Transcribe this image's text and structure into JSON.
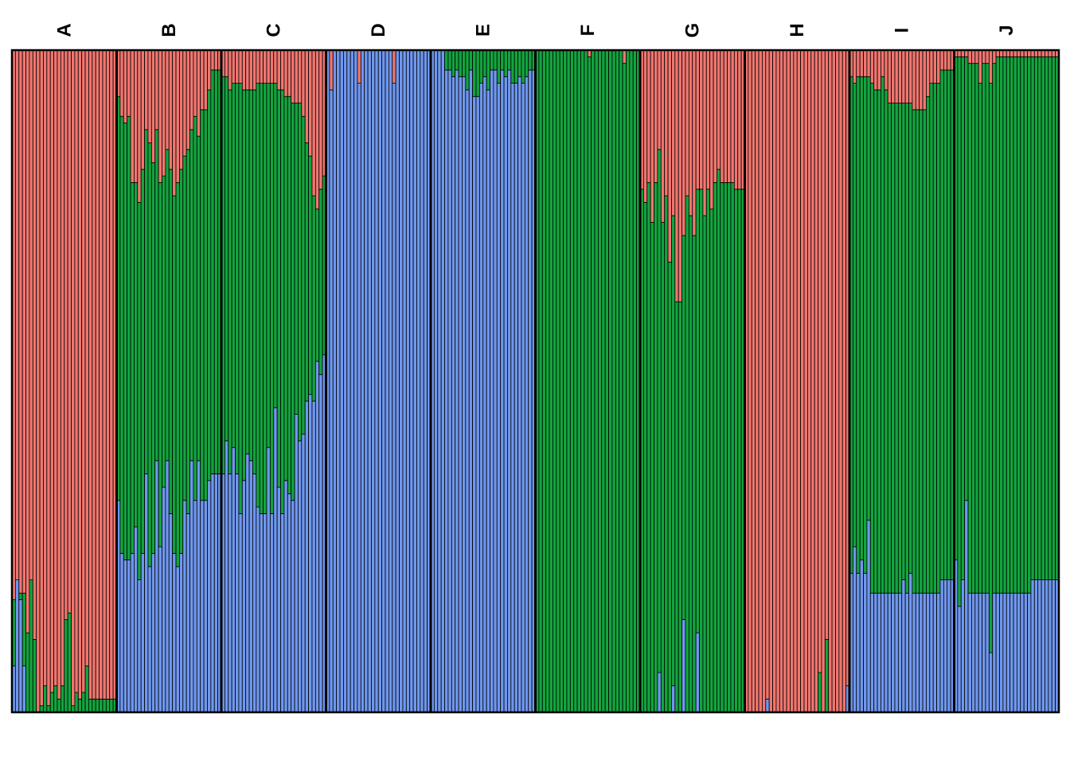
{
  "chart_data": {
    "type": "bar",
    "stacked": true,
    "orientation": "vertical",
    "ylim": [
      0,
      1
    ],
    "grid": false,
    "legend": "none",
    "colors": {
      "blue": "#6f97ee",
      "green": "#13a43f",
      "red": "#f0766f"
    },
    "series_order_bottom_to_top": [
      "blue",
      "green",
      "red"
    ],
    "groups": [
      {
        "label": "A",
        "blue": [
          0.07,
          0.2,
          0.17,
          0.07,
          0,
          0,
          0,
          0,
          0,
          0,
          0,
          0,
          0,
          0,
          0,
          0,
          0,
          0,
          0,
          0,
          0,
          0,
          0,
          0,
          0,
          0,
          0,
          0,
          0,
          0
        ],
        "green": [
          0.1,
          0,
          0.01,
          0.11,
          0.12,
          0.2,
          0.11,
          0,
          0.01,
          0.04,
          0.01,
          0.03,
          0.04,
          0.02,
          0.04,
          0.14,
          0.15,
          0.01,
          0.03,
          0.02,
          0.03,
          0.07,
          0.02,
          0.02,
          0.02,
          0.02,
          0.02,
          0.02,
          0.02,
          0.02
        ],
        "red": [
          0.83,
          0.8,
          0.82,
          0.82,
          0.88,
          0.8,
          0.89,
          1,
          0.99,
          0.96,
          0.99,
          0.97,
          0.96,
          0.98,
          0.96,
          0.86,
          0.85,
          0.99,
          0.97,
          0.98,
          0.97,
          0.93,
          0.98,
          0.98,
          0.98,
          0.98,
          0.98,
          0.98,
          0.98,
          0.98
        ]
      },
      {
        "label": "B",
        "blue": [
          0.32,
          0.24,
          0.23,
          0.23,
          0.24,
          0.28,
          0.2,
          0.24,
          0.36,
          0.22,
          0.24,
          0.38,
          0.25,
          0.34,
          0.38,
          0.3,
          0.24,
          0.22,
          0.24,
          0.32,
          0.3,
          0.38,
          0.32,
          0.38,
          0.32,
          0.32,
          0.35,
          0.36,
          0.36,
          0.36
        ],
        "green": [
          0.61,
          0.66,
          0.66,
          0.67,
          0.56,
          0.52,
          0.57,
          0.58,
          0.52,
          0.64,
          0.59,
          0.5,
          0.55,
          0.47,
          0.47,
          0.52,
          0.54,
          0.58,
          0.58,
          0.52,
          0.55,
          0.5,
          0.58,
          0.49,
          0.59,
          0.59,
          0.59,
          0.61,
          0.61,
          0.61
        ],
        "red": [
          0.07,
          0.1,
          0.11,
          0.1,
          0.2,
          0.2,
          0.23,
          0.18,
          0.12,
          0.14,
          0.17,
          0.12,
          0.2,
          0.19,
          0.15,
          0.18,
          0.22,
          0.2,
          0.18,
          0.16,
          0.15,
          0.12,
          0.1,
          0.13,
          0.09,
          0.09,
          0.06,
          0.03,
          0.03,
          0.03
        ]
      },
      {
        "label": "C",
        "blue": [
          0.36,
          0.41,
          0.36,
          0.4,
          0.36,
          0.3,
          0.35,
          0.39,
          0.38,
          0.36,
          0.31,
          0.3,
          0.3,
          0.4,
          0.3,
          0.46,
          0.34,
          0.3,
          0.35,
          0.33,
          0.32,
          0.45,
          0.41,
          0.42,
          0.47,
          0.48,
          0.47,
          0.53,
          0.51,
          0.54
        ],
        "green": [
          0.6,
          0.55,
          0.58,
          0.55,
          0.59,
          0.65,
          0.59,
          0.55,
          0.56,
          0.58,
          0.64,
          0.65,
          0.65,
          0.55,
          0.65,
          0.49,
          0.6,
          0.64,
          0.58,
          0.6,
          0.6,
          0.47,
          0.51,
          0.48,
          0.39,
          0.36,
          0.31,
          0.23,
          0.28,
          0.27
        ],
        "red": [
          0.04,
          0.04,
          0.06,
          0.05,
          0.05,
          0.05,
          0.06,
          0.06,
          0.06,
          0.06,
          0.05,
          0.05,
          0.05,
          0.05,
          0.05,
          0.05,
          0.06,
          0.06,
          0.07,
          0.07,
          0.08,
          0.08,
          0.08,
          0.1,
          0.14,
          0.16,
          0.22,
          0.24,
          0.21,
          0.19
        ]
      },
      {
        "label": "D",
        "blue": [
          1,
          0.94,
          1,
          1,
          1,
          1,
          1,
          1,
          1,
          0.95,
          1,
          1,
          1,
          1,
          1,
          1,
          1,
          1,
          1,
          0.95,
          1,
          1,
          1,
          1,
          1,
          1,
          1,
          1,
          1,
          1
        ],
        "green": [
          0,
          0,
          0,
          0,
          0,
          0,
          0,
          0,
          0,
          0,
          0,
          0,
          0,
          0,
          0,
          0,
          0,
          0,
          0,
          0,
          0,
          0,
          0,
          0,
          0,
          0,
          0,
          0,
          0,
          0
        ],
        "red": [
          0,
          0.06,
          0,
          0,
          0,
          0,
          0,
          0,
          0,
          0.05,
          0,
          0,
          0,
          0,
          0,
          0,
          0,
          0,
          0,
          0.05,
          0,
          0,
          0,
          0,
          0,
          0,
          0,
          0,
          0,
          0
        ]
      },
      {
        "label": "E",
        "blue": [
          1,
          1,
          1,
          1,
          0.97,
          0.97,
          0.96,
          0.97,
          0.96,
          0.96,
          0.94,
          0.97,
          0.93,
          0.93,
          0.95,
          0.96,
          0.94,
          0.97,
          0.97,
          0.95,
          0.97,
          0.96,
          0.97,
          0.95,
          0.95,
          0.96,
          0.95,
          0.96,
          0.97,
          0.97
        ],
        "green": [
          0,
          0,
          0,
          0,
          0.03,
          0.03,
          0.04,
          0.03,
          0.04,
          0.04,
          0.06,
          0.03,
          0.07,
          0.07,
          0.05,
          0.04,
          0.06,
          0.03,
          0.03,
          0.05,
          0.03,
          0.04,
          0.03,
          0.05,
          0.05,
          0.04,
          0.05,
          0.04,
          0.03,
          0.03
        ],
        "red": [
          0,
          0,
          0,
          0,
          0,
          0,
          0,
          0,
          0,
          0,
          0,
          0,
          0,
          0,
          0,
          0,
          0,
          0,
          0,
          0,
          0,
          0,
          0,
          0,
          0,
          0,
          0,
          0,
          0,
          0
        ]
      },
      {
        "label": "F",
        "blue": [
          0,
          0,
          0,
          0,
          0,
          0,
          0,
          0,
          0,
          0,
          0,
          0,
          0,
          0,
          0,
          0,
          0,
          0,
          0,
          0,
          0,
          0,
          0,
          0,
          0,
          0,
          0,
          0,
          0,
          0
        ],
        "green": [
          1,
          1,
          1,
          1,
          1,
          1,
          1,
          1,
          1,
          1,
          1,
          1,
          1,
          1,
          1,
          0.99,
          1,
          1,
          1,
          1,
          1,
          1,
          1,
          1,
          1,
          0.98,
          1,
          1,
          1,
          1
        ],
        "red": [
          0,
          0,
          0,
          0,
          0,
          0,
          0,
          0,
          0,
          0,
          0,
          0,
          0,
          0,
          0,
          0.01,
          0,
          0,
          0,
          0,
          0,
          0,
          0,
          0,
          0,
          0.02,
          0,
          0,
          0,
          0
        ]
      },
      {
        "label": "G",
        "blue": [
          0,
          0,
          0,
          0,
          0,
          0.06,
          0,
          0,
          0,
          0.04,
          0,
          0,
          0.14,
          0,
          0,
          0,
          0.12,
          0,
          0,
          0,
          0,
          0,
          0,
          0,
          0,
          0,
          0,
          0,
          0,
          0
        ],
        "green": [
          0.79,
          0.77,
          0.8,
          0.74,
          0.8,
          0.79,
          0.74,
          0.78,
          0.68,
          0.71,
          0.62,
          0.62,
          0.58,
          0.78,
          0.75,
          0.72,
          0.67,
          0.79,
          0.75,
          0.79,
          0.76,
          0.8,
          0.82,
          0.8,
          0.8,
          0.8,
          0.8,
          0.79,
          0.79,
          0.79
        ],
        "red": [
          0.21,
          0.23,
          0.2,
          0.26,
          0.2,
          0.15,
          0.26,
          0.22,
          0.32,
          0.25,
          0.38,
          0.38,
          0.28,
          0.22,
          0.25,
          0.28,
          0.21,
          0.21,
          0.25,
          0.21,
          0.24,
          0.2,
          0.18,
          0.2,
          0.2,
          0.2,
          0.2,
          0.21,
          0.21,
          0.21
        ]
      },
      {
        "label": "H",
        "blue": [
          0,
          0,
          0,
          0,
          0,
          0,
          0.02,
          0,
          0,
          0,
          0,
          0,
          0,
          0,
          0,
          0,
          0,
          0,
          0,
          0,
          0,
          0,
          0,
          0,
          0,
          0,
          0,
          0,
          0,
          0.04
        ],
        "green": [
          0,
          0,
          0,
          0,
          0,
          0,
          0,
          0,
          0,
          0,
          0,
          0,
          0,
          0,
          0,
          0,
          0,
          0,
          0,
          0,
          0,
          0.06,
          0,
          0.11,
          0,
          0,
          0,
          0,
          0,
          0
        ],
        "red": [
          1,
          1,
          1,
          1,
          1,
          1,
          0.98,
          1,
          1,
          1,
          1,
          1,
          1,
          1,
          1,
          1,
          1,
          1,
          1,
          1,
          1,
          0.94,
          1,
          0.89,
          1,
          1,
          1,
          1,
          1,
          0.96
        ]
      },
      {
        "label": "I",
        "blue": [
          0.21,
          0.25,
          0.21,
          0.23,
          0.21,
          0.29,
          0.18,
          0.18,
          0.18,
          0.18,
          0.18,
          0.18,
          0.18,
          0.18,
          0.18,
          0.2,
          0.18,
          0.21,
          0.18,
          0.18,
          0.18,
          0.18,
          0.18,
          0.18,
          0.18,
          0.18,
          0.2,
          0.2,
          0.2,
          0.2
        ],
        "green": [
          0.75,
          0.7,
          0.75,
          0.73,
          0.75,
          0.67,
          0.77,
          0.76,
          0.76,
          0.78,
          0.76,
          0.74,
          0.74,
          0.74,
          0.74,
          0.72,
          0.74,
          0.71,
          0.73,
          0.73,
          0.73,
          0.73,
          0.75,
          0.77,
          0.77,
          0.77,
          0.77,
          0.77,
          0.77,
          0.77
        ],
        "red": [
          0.04,
          0.05,
          0.04,
          0.04,
          0.04,
          0.04,
          0.05,
          0.06,
          0.06,
          0.04,
          0.06,
          0.08,
          0.08,
          0.08,
          0.08,
          0.08,
          0.08,
          0.08,
          0.09,
          0.09,
          0.09,
          0.09,
          0.07,
          0.05,
          0.05,
          0.05,
          0.03,
          0.03,
          0.03,
          0.03
        ]
      },
      {
        "label": "J",
        "blue": [
          0.23,
          0.16,
          0.2,
          0.32,
          0.18,
          0.18,
          0.18,
          0.18,
          0.18,
          0.18,
          0.09,
          0.18,
          0.18,
          0.18,
          0.18,
          0.18,
          0.18,
          0.18,
          0.18,
          0.18,
          0.18,
          0.18,
          0.2,
          0.2,
          0.2,
          0.2,
          0.2,
          0.2,
          0.2,
          0.2
        ],
        "green": [
          0.76,
          0.83,
          0.79,
          0.67,
          0.8,
          0.8,
          0.8,
          0.77,
          0.8,
          0.8,
          0.86,
          0.8,
          0.81,
          0.81,
          0.81,
          0.81,
          0.81,
          0.81,
          0.81,
          0.81,
          0.81,
          0.81,
          0.79,
          0.79,
          0.79,
          0.79,
          0.79,
          0.79,
          0.79,
          0.79
        ],
        "red": [
          0.01,
          0.01,
          0.01,
          0.01,
          0.02,
          0.02,
          0.02,
          0.05,
          0.02,
          0.02,
          0.05,
          0.02,
          0.01,
          0.01,
          0.01,
          0.01,
          0.01,
          0.01,
          0.01,
          0.01,
          0.01,
          0.01,
          0.01,
          0.01,
          0.01,
          0.01,
          0.01,
          0.01,
          0.01,
          0.01
        ]
      }
    ]
  }
}
